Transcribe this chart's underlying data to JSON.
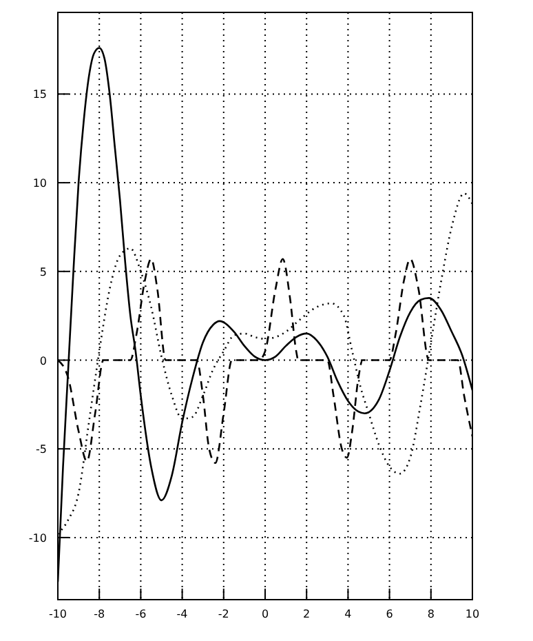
{
  "chart_data": {
    "type": "line",
    "xlim": [
      -10,
      10
    ],
    "ylim": [
      -13.5,
      19.6
    ],
    "xticks": [
      -10,
      -8,
      -6,
      -4,
      -2,
      0,
      2,
      4,
      6,
      8,
      10
    ],
    "yticks": [
      -10,
      -5,
      0,
      5,
      10,
      15
    ],
    "grid": true,
    "marker": "none",
    "series": [
      {
        "color": "#000000",
        "line_style": "solid",
        "x": [
          -10,
          -9.75,
          -9.5,
          -9.25,
          -9,
          -8.75,
          -8.5,
          -8.25,
          -8,
          -7.75,
          -7.5,
          -7.25,
          -7,
          -6.75,
          -6.5,
          -6.25,
          -6,
          -5.5,
          -5,
          -4.5,
          -4,
          -3.5,
          -3,
          -2.5,
          -2.2,
          -1.5,
          -1,
          -0.5,
          0,
          0.5,
          1,
          1.5,
          2,
          2.5,
          3,
          3.5,
          4,
          4.5,
          4.8,
          5.5,
          6,
          6.5,
          7,
          7.5,
          7.9,
          8.5,
          9,
          9.5,
          10
        ],
        "values": [
          -12.5,
          -6,
          -0.5,
          5,
          10,
          13.5,
          16,
          17.3,
          17.6,
          17,
          15,
          12,
          9,
          5.5,
          2.5,
          0.5,
          -2,
          -6,
          -7.9,
          -6.5,
          -3.5,
          -1,
          1,
          2,
          2.2,
          1.6,
          0.8,
          0.2,
          0,
          0.2,
          0.8,
          1.3,
          1.5,
          1.1,
          0.2,
          -1.2,
          -2.3,
          -2.9,
          -3,
          -2.2,
          -0.6,
          1.3,
          2.7,
          3.4,
          3.5,
          2.8,
          1.6,
          0.3,
          -1.7
        ]
      },
      {
        "color": "#000000",
        "line_style": "dashed",
        "x": [
          -10,
          -9.5,
          -9,
          -8.6,
          -8.2,
          -7.8,
          -6.5,
          -6.2,
          -5.8,
          -5.5,
          -5.2,
          -4.8,
          -3.3,
          -3,
          -2.7,
          -2.4,
          -2,
          -1.6,
          -0.3,
          0,
          0.5,
          0.85,
          1.2,
          1.5,
          1.6,
          3,
          3.3,
          3.7,
          3.95,
          4.2,
          4.5,
          4.7,
          6,
          6.3,
          6.7,
          7,
          7.4,
          7.9,
          9.3,
          9.6,
          10
        ],
        "values": [
          0,
          -1,
          -4,
          -5.7,
          -3,
          0,
          0,
          1.5,
          4.5,
          5.7,
          4,
          0,
          0,
          -2,
          -5,
          -5.8,
          -3,
          0,
          0,
          0.5,
          4,
          5.7,
          3.5,
          0.5,
          0,
          0,
          -2,
          -5,
          -5.5,
          -4,
          -1,
          0,
          0,
          1.5,
          4.5,
          5.7,
          4,
          0,
          0,
          -2,
          -4.3
        ]
      },
      {
        "color": "#000000",
        "line_style": "dotted",
        "x": [
          -10,
          -9.5,
          -9,
          -8.5,
          -8,
          -7.5,
          -7,
          -6.5,
          -6,
          -5.5,
          -5,
          -4.5,
          -4,
          -3.5,
          -3,
          -2.5,
          -2,
          -1.5,
          -1,
          -0.5,
          0,
          0.5,
          1,
          1.5,
          2,
          2.5,
          3.2,
          3.8,
          4.2,
          4.6,
          5,
          5.5,
          6,
          6.5,
          7,
          7.5,
          8,
          8.5,
          9,
          9.6,
          10
        ],
        "values": [
          -9.8,
          -9,
          -7.5,
          -3.5,
          0.5,
          4,
          5.9,
          6.3,
          5,
          3,
          0.2,
          -2,
          -3.3,
          -3.2,
          -2,
          -0.5,
          0.5,
          1.4,
          1.5,
          1.3,
          1.2,
          1.3,
          1.6,
          2.1,
          2.6,
          3,
          3.2,
          2.5,
          0.5,
          -1.5,
          -3,
          -4.8,
          -6,
          -6.4,
          -5.5,
          -2.5,
          1,
          4.5,
          7.5,
          9.4,
          8.8
        ]
      }
    ]
  }
}
